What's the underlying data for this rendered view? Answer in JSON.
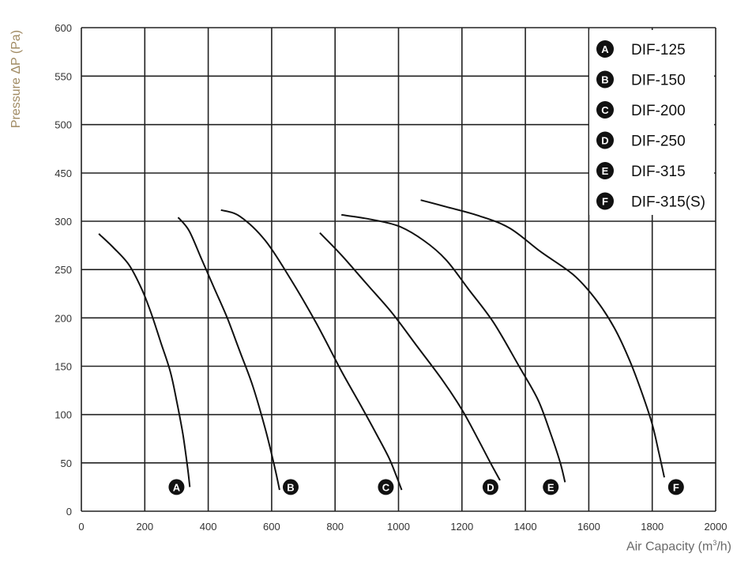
{
  "chart_data": {
    "type": "line",
    "title": "",
    "xlabel_main": "Air Capacity (m",
    "xlabel_sup": "3",
    "xlabel_tail": "/h)",
    "ylabel": "Pressure ΔP (Pa)",
    "xlim": [
      0,
      2000
    ],
    "ylim": [
      0,
      600
    ],
    "xticks": [
      0,
      200,
      400,
      600,
      800,
      1000,
      1200,
      1400,
      1600,
      1800,
      2000
    ],
    "yticks": [
      0,
      50,
      100,
      150,
      200,
      250,
      300,
      450,
      500,
      550,
      600
    ],
    "ytick_labels": [
      "0",
      "50",
      "100",
      "150",
      "200",
      "250",
      "300",
      "450",
      "500",
      "550",
      "600"
    ],
    "grid": true,
    "legend_position": "top-right",
    "series": [
      {
        "name": "DIF-125",
        "marker": "A",
        "label_at": [
          300,
          25
        ],
        "x": [
          55,
          100,
          150,
          190,
          220,
          250,
          280,
          300,
          320,
          335,
          342
        ],
        "y": [
          287,
          273,
          255,
          230,
          205,
          175,
          145,
          115,
          80,
          45,
          25
        ]
      },
      {
        "name": "DIF-150",
        "marker": "B",
        "label_at": [
          660,
          25
        ],
        "x": [
          305,
          340,
          380,
          420,
          460,
          500,
          540,
          580,
          610,
          625
        ],
        "y": [
          312,
          290,
          260,
          230,
          200,
          165,
          130,
          85,
          45,
          22
        ]
      },
      {
        "name": "DIF-200",
        "marker": "C",
        "label_at": [
          960,
          25
        ],
        "x": [
          440,
          500,
          580,
          660,
          740,
          820,
          880,
          930,
          970,
          995,
          1010
        ],
        "y": [
          335,
          315,
          280,
          240,
          195,
          145,
          110,
          80,
          55,
          35,
          22
        ]
      },
      {
        "name": "DIF-250",
        "marker": "D",
        "label_at": [
          1290,
          25
        ],
        "x": [
          752,
          820,
          900,
          980,
          1060,
          1140,
          1200,
          1250,
          1290,
          1320
        ],
        "y": [
          288,
          265,
          235,
          205,
          170,
          135,
          105,
          75,
          50,
          32
        ]
      },
      {
        "name": "DIF-315",
        "marker": "E",
        "label_at": [
          1480,
          25
        ],
        "x": [
          820,
          900,
          1000,
          1080,
          1150,
          1220,
          1300,
          1380,
          1440,
          1480,
          1510,
          1525
        ],
        "y": [
          320,
          308,
          295,
          280,
          260,
          230,
          195,
          150,
          115,
          80,
          50,
          30
        ]
      },
      {
        "name": "DIF-315(S)",
        "marker": "F",
        "label_at": [
          1875,
          25
        ],
        "x": [
          1070,
          1150,
          1250,
          1350,
          1450,
          1550,
          1620,
          1680,
          1730,
          1770,
          1800,
          1820,
          1838
        ],
        "y": [
          366,
          345,
          318,
          293,
          268,
          245,
          220,
          190,
          155,
          120,
          90,
          62,
          35
        ]
      }
    ],
    "legend": [
      {
        "marker": "A",
        "label": "DIF-125"
      },
      {
        "marker": "B",
        "label": "DIF-150"
      },
      {
        "marker": "C",
        "label": "DIF-200"
      },
      {
        "marker": "D",
        "label": "DIF-250"
      },
      {
        "marker": "E",
        "label": "DIF-315"
      },
      {
        "marker": "F",
        "label": "DIF-315(S)"
      }
    ]
  }
}
